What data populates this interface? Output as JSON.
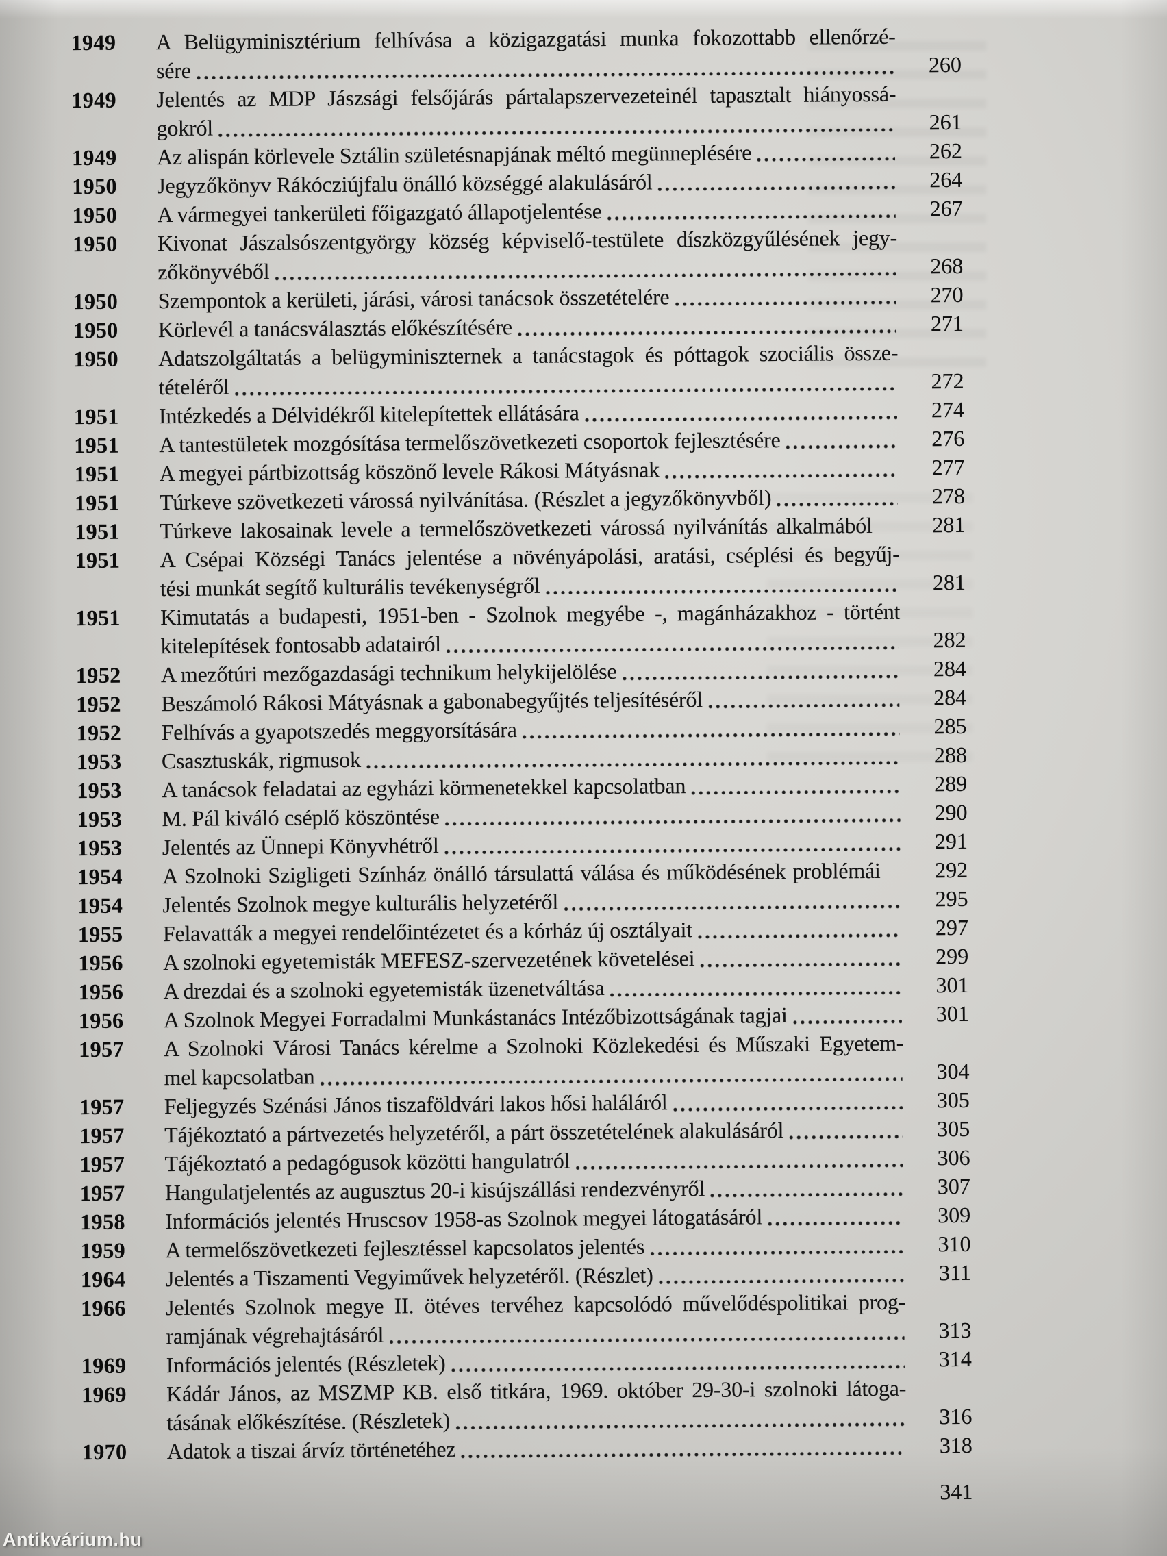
{
  "page": {
    "footer_page_number": "341",
    "watermark": "Antikvárium.hu",
    "paper_color": "#d4d3cf",
    "ink_color": "#141414"
  },
  "toc": {
    "entries": [
      {
        "year": "1949",
        "lines": [
          "A Belügyminisztérium felhívása a közigazgatási munka fokozottabb ellenőrzé-",
          "sére"
        ],
        "page": "260"
      },
      {
        "year": "1949",
        "lines": [
          "Jelentés az MDP Jászsági felsőjárás pártalapszervezeteinél tapasztalt hiányossá-",
          "gokról"
        ],
        "page": "261"
      },
      {
        "year": "1949",
        "lines": [
          "Az alispán körlevele Sztálin születésnapjának méltó megünneplésére"
        ],
        "page": "262"
      },
      {
        "year": "1950",
        "lines": [
          "Jegyzőkönyv Rákócziújfalu önálló községgé alakulásáról"
        ],
        "page": "264"
      },
      {
        "year": "1950",
        "lines": [
          "A vármegyei tankerületi főigazgató állapotjelentése"
        ],
        "page": "267"
      },
      {
        "year": "1950",
        "lines": [
          "Kivonat Jászalsószentgyörgy község képviselő-testülete díszközgyűlésének jegy-",
          "zőkönyvéből"
        ],
        "page": "268"
      },
      {
        "year": "1950",
        "lines": [
          "Szempontok a kerületi, járási, városi tanácsok összetételére"
        ],
        "page": "270"
      },
      {
        "year": "1950",
        "lines": [
          "Körlevél a tanácsválasztás előkészítésére"
        ],
        "page": "271"
      },
      {
        "year": "1950",
        "lines": [
          "Adatszolgáltatás a belügyminiszternek a tanácstagok és póttagok szociális össze-",
          "tételéről"
        ],
        "page": "272"
      },
      {
        "year": "1951",
        "lines": [
          "Intézkedés a Délvidékről kitelepítettek ellátására"
        ],
        "page": "274"
      },
      {
        "year": "1951",
        "lines": [
          "A tantestületek mozgósítása termelőszövetkezeti csoportok fejlesztésére"
        ],
        "page": "276"
      },
      {
        "year": "1951",
        "lines": [
          "A megyei pártbizottság köszönő levele Rákosi Mátyásnak"
        ],
        "page": "277"
      },
      {
        "year": "1951",
        "lines": [
          "Túrkeve szövetkezeti várossá nyilvánítása. (Részlet a jegyzőkönyvből)"
        ],
        "page": "278"
      },
      {
        "year": "1951",
        "lines": [
          "Túrkeve lakosainak levele a termelőszövetkezeti várossá nyilvánítás alkalmából"
        ],
        "page": "281",
        "leader": false
      },
      {
        "year": "1951",
        "lines": [
          "A Csépai Községi Tanács jelentése a növényápolási, aratási, cséplési és begyűj-",
          "tési munkát segítő kulturális tevékenységről"
        ],
        "page": "281"
      },
      {
        "year": "1951",
        "lines": [
          "Kimutatás a budapesti, 1951-ben - Szolnok megyébe -, magánházakhoz - történt",
          "kitelepítések fontosabb adatairól"
        ],
        "page": "282"
      },
      {
        "year": "1952",
        "lines": [
          "A mezőtúri mezőgazdasági technikum helykijelölése"
        ],
        "page": "284"
      },
      {
        "year": "1952",
        "lines": [
          "Beszámoló Rákosi Mátyásnak a gabonabegyűjtés teljesítéséről"
        ],
        "page": "284"
      },
      {
        "year": "1952",
        "lines": [
          "Felhívás a gyapotszedés meggyorsítására"
        ],
        "page": "285"
      },
      {
        "year": "1953",
        "lines": [
          "Csasztuskák, rigmusok"
        ],
        "page": "288"
      },
      {
        "year": "1953",
        "lines": [
          "A tanácsok feladatai az egyházi körmenetekkel kapcsolatban"
        ],
        "page": "289"
      },
      {
        "year": "1953",
        "lines": [
          "M. Pál kiváló cséplő köszöntése"
        ],
        "page": "290"
      },
      {
        "year": "1953",
        "lines": [
          "Jelentés az Ünnepi Könyvhétről"
        ],
        "page": "291"
      },
      {
        "year": "1954",
        "lines": [
          "A Szolnoki Szigligeti Színház önálló társulattá válása és működésének problémái"
        ],
        "page": "292",
        "leader": false
      },
      {
        "year": "1954",
        "lines": [
          "Jelentés Szolnok megye kulturális helyzetéről"
        ],
        "page": "295"
      },
      {
        "year": "1955",
        "lines": [
          "Felavatták a megyei rendelőintézetet és a kórház új osztályait"
        ],
        "page": "297"
      },
      {
        "year": "1956",
        "lines": [
          "A szolnoki egyetemisták MEFESZ-szervezetének követelései"
        ],
        "page": "299"
      },
      {
        "year": "1956",
        "lines": [
          "A drezdai és a szolnoki egyetemisták üzenetváltása"
        ],
        "page": "301"
      },
      {
        "year": "1956",
        "lines": [
          "A Szolnok Megyei Forradalmi Munkástanács Intézőbizottságának tagjai"
        ],
        "page": "301"
      },
      {
        "year": "1957",
        "lines": [
          "A Szolnoki Városi Tanács kérelme a Szolnoki Közlekedési és Műszaki Egyetem-",
          "mel kapcsolatban"
        ],
        "page": "304"
      },
      {
        "year": "1957",
        "lines": [
          "Feljegyzés Szénási János tiszaföldvári lakos hősi haláláról"
        ],
        "page": "305"
      },
      {
        "year": "1957",
        "lines": [
          "Tájékoztató a pártvezetés helyzetéről, a párt összetételének alakulásáról"
        ],
        "page": "305"
      },
      {
        "year": "1957",
        "lines": [
          "Tájékoztató a pedagógusok közötti hangulatról"
        ],
        "page": "306"
      },
      {
        "year": "1957",
        "lines": [
          "Hangulatjelentés az augusztus 20-i kisújszállási rendezvényről"
        ],
        "page": "307"
      },
      {
        "year": "1958",
        "lines": [
          "Információs jelentés Hruscsov 1958-as Szolnok megyei látogatásáról"
        ],
        "page": "309"
      },
      {
        "year": "1959",
        "lines": [
          "A termelőszövetkezeti fejlesztéssel kapcsolatos jelentés"
        ],
        "page": "310"
      },
      {
        "year": "1964",
        "lines": [
          "Jelentés a Tiszamenti Vegyiművek helyzetéről. (Részlet)"
        ],
        "page": "311"
      },
      {
        "year": "1966",
        "lines": [
          "Jelentés Szolnok megye II. ötéves tervéhez kapcsolódó művelődéspolitikai prog-",
          "ramjának végrehajtásáról"
        ],
        "page": "313"
      },
      {
        "year": "1969",
        "lines": [
          "Információs jelentés (Részletek)"
        ],
        "page": "314"
      },
      {
        "year": "1969",
        "lines": [
          "Kádár János, az MSZMP KB. első titkára, 1969. október 29-30-i szolnoki látoga-",
          "tásának előkészítése. (Részletek)"
        ],
        "page": "316"
      },
      {
        "year": "1970",
        "lines": [
          "Adatok a tiszai árvíz történetéhez"
        ],
        "page": "318"
      }
    ]
  }
}
